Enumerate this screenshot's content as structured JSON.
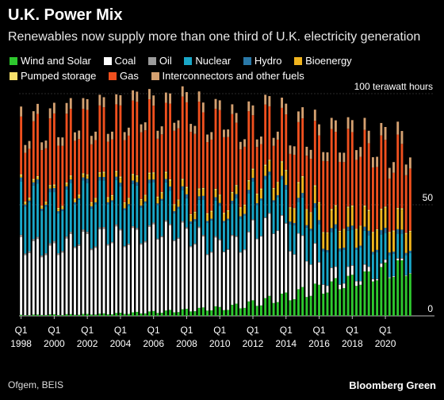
{
  "header": {
    "title": "U.K. Power Mix",
    "subtitle": "Renewables now supply more than one third of U.K. electricity generation"
  },
  "legend": [
    {
      "name": "Wind and Solar",
      "color": "#2ec82e"
    },
    {
      "name": "Coal",
      "color": "#ffffff"
    },
    {
      "name": "Oil",
      "color": "#9b9b9b"
    },
    {
      "name": "Nuclear",
      "color": "#1aa7c8"
    },
    {
      "name": "Hydro",
      "color": "#2a79a8"
    },
    {
      "name": "Bioenergy",
      "color": "#f0b41e"
    },
    {
      "name": "Pumped storage",
      "color": "#f6e06a"
    },
    {
      "name": "Gas",
      "color": "#f0501e"
    },
    {
      "name": "Interconnectors and other fuels",
      "color": "#d4a070"
    }
  ],
  "footer": {
    "source": "Ofgem, BEIS",
    "brand": "Bloomberg Green"
  },
  "chart_data": {
    "type": "bar",
    "stacked": true,
    "y_unit_label": "100 terawatt hours",
    "ylim": [
      0,
      100
    ],
    "y_ticks": [
      0,
      50,
      100
    ],
    "y_tick_labels": [
      "0",
      "50",
      "100 terawatt hours"
    ],
    "x_tick_labels": [
      {
        "q": "Q1",
        "year": "1998"
      },
      {
        "q": "Q1",
        "year": "2000"
      },
      {
        "q": "Q1",
        "year": "2002"
      },
      {
        "q": "Q1",
        "year": "2004"
      },
      {
        "q": "Q1",
        "year": "2006"
      },
      {
        "q": "Q1",
        "year": "2008"
      },
      {
        "q": "Q1",
        "year": "2010"
      },
      {
        "q": "Q1",
        "year": "2012"
      },
      {
        "q": "Q1",
        "year": "2014"
      },
      {
        "q": "Q1",
        "year": "2016"
      },
      {
        "q": "Q1",
        "year": "2018"
      },
      {
        "q": "Q1",
        "year": "2020"
      }
    ],
    "categories": [
      "1998 Q1",
      "1998 Q2",
      "1998 Q3",
      "1998 Q4",
      "1999 Q1",
      "1999 Q2",
      "1999 Q3",
      "1999 Q4",
      "2000 Q1",
      "2000 Q2",
      "2000 Q3",
      "2000 Q4",
      "2001 Q1",
      "2001 Q2",
      "2001 Q3",
      "2001 Q4",
      "2002 Q1",
      "2002 Q2",
      "2002 Q3",
      "2002 Q4",
      "2003 Q1",
      "2003 Q2",
      "2003 Q3",
      "2003 Q4",
      "2004 Q1",
      "2004 Q2",
      "2004 Q3",
      "2004 Q4",
      "2005 Q1",
      "2005 Q2",
      "2005 Q3",
      "2005 Q4",
      "2006 Q1",
      "2006 Q2",
      "2006 Q3",
      "2006 Q4",
      "2007 Q1",
      "2007 Q2",
      "2007 Q3",
      "2007 Q4",
      "2008 Q1",
      "2008 Q2",
      "2008 Q3",
      "2008 Q4",
      "2009 Q1",
      "2009 Q2",
      "2009 Q3",
      "2009 Q4",
      "2010 Q1",
      "2010 Q2",
      "2010 Q3",
      "2010 Q4",
      "2011 Q1",
      "2011 Q2",
      "2011 Q3",
      "2011 Q4",
      "2012 Q1",
      "2012 Q2",
      "2012 Q3",
      "2012 Q4",
      "2013 Q1",
      "2013 Q2",
      "2013 Q3",
      "2013 Q4",
      "2014 Q1",
      "2014 Q2",
      "2014 Q3",
      "2014 Q4",
      "2015 Q1",
      "2015 Q2",
      "2015 Q3",
      "2015 Q4",
      "2016 Q1",
      "2016 Q2",
      "2016 Q3",
      "2016 Q4",
      "2017 Q1",
      "2017 Q2",
      "2017 Q3",
      "2017 Q4",
      "2018 Q1",
      "2018 Q2",
      "2018 Q3",
      "2018 Q4",
      "2019 Q1",
      "2019 Q2",
      "2019 Q3",
      "2019 Q4",
      "2020 Q1",
      "2020 Q2",
      "2020 Q3",
      "2020 Q4",
      "2021 Q1",
      "2021 Q2",
      "2021 Q3"
    ],
    "series": [
      {
        "name": "Wind and Solar",
        "values": [
          0.5,
          0.3,
          0.3,
          0.6,
          0.6,
          0.4,
          0.4,
          0.7,
          0.7,
          0.4,
          0.4,
          0.8,
          0.8,
          0.5,
          0.5,
          0.9,
          0.9,
          0.6,
          0.6,
          1.0,
          1.1,
          0.7,
          0.7,
          1.3,
          1.4,
          0.9,
          0.9,
          1.6,
          1.8,
          1.1,
          1.1,
          2.0,
          2.2,
          1.3,
          1.4,
          2.4,
          2.7,
          1.6,
          1.7,
          3.0,
          3.2,
          2.0,
          2.1,
          3.6,
          3.8,
          2.4,
          2.5,
          4.3,
          4.0,
          2.6,
          2.7,
          5.0,
          5.5,
          3.4,
          3.6,
          6.5,
          7.0,
          4.5,
          4.7,
          8.0,
          9.0,
          5.8,
          6.2,
          10.0,
          10.5,
          7.0,
          7.5,
          12.0,
          13.0,
          8.5,
          9.0,
          14.5,
          14.0,
          10.0,
          10.5,
          15.5,
          17.0,
          12.0,
          12.5,
          18.0,
          18.5,
          13.5,
          14.0,
          20.0,
          20.0,
          15.5,
          16.0,
          22.0,
          24.0,
          17.0,
          17.5,
          25.0,
          25.0,
          18.0,
          19.0
        ]
      },
      {
        "name": "Coal",
        "values": [
          35,
          27,
          28,
          33,
          34,
          26,
          27,
          31,
          32,
          27,
          28,
          34,
          36,
          30,
          31,
          37,
          36,
          29,
          30,
          38,
          38,
          31,
          32,
          39,
          37,
          30,
          31,
          38,
          37,
          31,
          32,
          38,
          39,
          33,
          34,
          40,
          38,
          32,
          33,
          39,
          36,
          29,
          30,
          36,
          32,
          25,
          26,
          31,
          30,
          26,
          27,
          31,
          30,
          25,
          26,
          31,
          36,
          30,
          31,
          36,
          37,
          31,
          32,
          35,
          31,
          22,
          20,
          25,
          23,
          16,
          14,
          18,
          10,
          4,
          3,
          6,
          5,
          2,
          2,
          4,
          4,
          2,
          1.5,
          3,
          2,
          1,
          0.5,
          1.5,
          1.2,
          0.3,
          0.3,
          0.8,
          0.8,
          0.2,
          0.2
        ]
      },
      {
        "name": "Oil",
        "values": [
          1,
          0.8,
          0.8,
          1,
          1,
          0.8,
          0.8,
          1,
          1,
          0.8,
          0.8,
          1,
          1,
          0.7,
          0.7,
          1,
          1,
          0.7,
          0.7,
          0.9,
          0.9,
          0.6,
          0.6,
          0.9,
          0.8,
          0.6,
          0.6,
          0.8,
          0.8,
          0.6,
          0.6,
          0.8,
          0.8,
          0.5,
          0.5,
          0.7,
          0.7,
          0.5,
          0.5,
          0.7,
          0.7,
          0.5,
          0.5,
          0.6,
          0.6,
          0.4,
          0.4,
          0.6,
          0.6,
          0.4,
          0.4,
          0.5,
          0.5,
          0.4,
          0.4,
          0.5,
          0.5,
          0.3,
          0.3,
          0.4,
          0.4,
          0.3,
          0.3,
          0.4,
          0.4,
          0.3,
          0.3,
          0.3,
          0.3,
          0.2,
          0.2,
          0.3,
          0.3,
          0.2,
          0.2,
          0.3,
          0.3,
          0.2,
          0.2,
          0.3,
          0.3,
          0.2,
          0.2,
          0.3,
          0.3,
          0.2,
          0.2,
          0.2,
          0.2,
          0.1,
          0.1,
          0.2,
          0.2,
          0.1,
          0.1
        ]
      },
      {
        "name": "Nuclear",
        "values": [
          24,
          21,
          22,
          24,
          24,
          20,
          21,
          23,
          22,
          18,
          18,
          21,
          22,
          19,
          20,
          22,
          22,
          18,
          19,
          21,
          21,
          18,
          18,
          20,
          19,
          16,
          17,
          19,
          19,
          16,
          17,
          19,
          18,
          15,
          16,
          17,
          15,
          12,
          13,
          14,
          13,
          10,
          10,
          12,
          16,
          14,
          14,
          16,
          15,
          13,
          13,
          14,
          17,
          15,
          15,
          17,
          17,
          15,
          16,
          17,
          17,
          14,
          15,
          16,
          15,
          12,
          13,
          14,
          17,
          15,
          15,
          16,
          17,
          15,
          15,
          16,
          17,
          15,
          15,
          16,
          16,
          14,
          15,
          15,
          14,
          11,
          12,
          13,
          12,
          10,
          10,
          11,
          11,
          9,
          9
        ]
      },
      {
        "name": "Hydro",
        "values": [
          1.8,
          1.0,
          0.8,
          1.5,
          1.8,
          1.0,
          0.8,
          1.6,
          1.8,
          0.9,
          0.8,
          1.5,
          1.6,
          0.9,
          0.7,
          1.4,
          1.8,
          1.0,
          0.8,
          1.6,
          1.5,
          0.8,
          0.7,
          1.4,
          1.7,
          0.9,
          0.8,
          1.5,
          1.6,
          0.9,
          0.8,
          1.5,
          1.4,
          0.8,
          0.7,
          1.5,
          1.8,
          1.0,
          0.9,
          1.6,
          1.8,
          1.0,
          0.9,
          1.6,
          1.6,
          0.9,
          0.8,
          1.5,
          1.2,
          0.7,
          0.6,
          1.3,
          1.8,
          1.0,
          0.9,
          1.7,
          1.6,
          0.9,
          0.8,
          1.6,
          1.5,
          0.9,
          0.8,
          1.6,
          2.0,
          1.1,
          1.0,
          1.8,
          2.0,
          1.1,
          1.0,
          1.9,
          1.8,
          1.0,
          0.9,
          1.7,
          1.9,
          1.1,
          1.0,
          1.8,
          1.8,
          1.0,
          0.9,
          1.8,
          2.0,
          1.1,
          1.0,
          1.9,
          2.2,
          1.1,
          1.0,
          2.0,
          1.8,
          1.0,
          1.0
        ]
      },
      {
        "name": "Bioenergy",
        "values": [
          0.8,
          0.8,
          0.8,
          0.9,
          0.9,
          0.9,
          0.9,
          1.0,
          1.0,
          1.0,
          1.0,
          1.1,
          1.2,
          1.2,
          1.2,
          1.3,
          1.4,
          1.4,
          1.5,
          1.6,
          1.8,
          1.8,
          1.9,
          2.0,
          2.2,
          2.2,
          2.3,
          2.4,
          2.5,
          2.5,
          2.5,
          2.6,
          2.6,
          2.6,
          2.6,
          2.7,
          2.7,
          2.7,
          2.8,
          2.8,
          2.8,
          2.8,
          2.9,
          3.0,
          3.0,
          3.0,
          3.1,
          3.2,
          3.2,
          3.2,
          3.3,
          3.4,
          3.5,
          3.6,
          3.7,
          3.8,
          3.6,
          3.8,
          4.0,
          4.5,
          4.8,
          5.0,
          5.5,
          6.0,
          6.2,
          6.0,
          6.2,
          6.5,
          7.0,
          6.8,
          7.0,
          7.5,
          7.5,
          7.0,
          7.5,
          8.0,
          8.0,
          7.5,
          8.0,
          8.5,
          8.5,
          8.0,
          8.5,
          9.0,
          8.8,
          8.5,
          8.8,
          9.0,
          9.0,
          8.8,
          9.0,
          9.0,
          9.0,
          8.5,
          8.5
        ]
      },
      {
        "name": "Pumped storage",
        "values": [
          0.6,
          0.5,
          0.5,
          0.6,
          0.6,
          0.5,
          0.5,
          0.6,
          0.6,
          0.5,
          0.5,
          0.6,
          0.6,
          0.5,
          0.5,
          0.6,
          0.6,
          0.5,
          0.5,
          0.6,
          0.6,
          0.5,
          0.5,
          0.6,
          0.6,
          0.5,
          0.5,
          0.6,
          0.6,
          0.5,
          0.5,
          0.6,
          0.6,
          0.5,
          0.5,
          0.6,
          0.6,
          0.5,
          0.5,
          0.6,
          0.6,
          0.5,
          0.5,
          0.6,
          0.6,
          0.5,
          0.5,
          0.6,
          0.6,
          0.5,
          0.5,
          0.6,
          0.6,
          0.5,
          0.5,
          0.6,
          0.6,
          0.5,
          0.5,
          0.6,
          0.6,
          0.5,
          0.5,
          0.6,
          0.6,
          0.5,
          0.5,
          0.6,
          0.6,
          0.5,
          0.5,
          0.6,
          0.6,
          0.5,
          0.5,
          0.6,
          0.6,
          0.5,
          0.5,
          0.6,
          0.6,
          0.5,
          0.5,
          0.6,
          0.6,
          0.5,
          0.5,
          0.6,
          0.6,
          0.5,
          0.5,
          0.6,
          0.6,
          0.5,
          0.5
        ]
      },
      {
        "name": "Gas",
        "values": [
          26,
          22,
          22,
          26,
          28,
          25,
          24,
          30,
          32,
          28,
          27,
          31,
          30,
          26,
          25,
          29,
          29,
          26,
          26,
          30,
          29,
          25,
          25,
          30,
          32,
          28,
          28,
          33,
          33,
          30,
          29,
          33,
          30,
          26,
          26,
          31,
          34,
          33,
          32,
          37,
          38,
          37,
          35,
          39,
          34,
          32,
          32,
          36,
          38,
          34,
          33,
          35,
          28,
          26,
          26,
          31,
          24,
          21,
          20,
          27,
          24,
          19,
          19,
          24,
          25,
          24,
          24,
          27,
          26,
          24,
          24,
          29,
          30,
          32,
          32,
          36,
          33,
          31,
          30,
          35,
          33,
          31,
          31,
          34,
          30,
          29,
          28,
          33,
          30,
          24,
          26,
          33,
          29,
          26,
          28
        ]
      },
      {
        "name": "Interconnectors and other fuels",
        "values": [
          4.5,
          3.5,
          3.5,
          4.5,
          4.5,
          3.5,
          3.5,
          4.5,
          4.8,
          3.8,
          3.8,
          4.8,
          4.8,
          3.8,
          3.8,
          4.8,
          4.8,
          3.8,
          3.8,
          4.8,
          4.5,
          3.5,
          3.5,
          4.5,
          4.6,
          3.6,
          3.6,
          4.6,
          4.6,
          3.6,
          3.6,
          4.6,
          4.6,
          3.6,
          3.6,
          4.6,
          4.6,
          3.6,
          3.6,
          4.6,
          4.6,
          3.6,
          3.6,
          4.6,
          4.4,
          3.4,
          3.4,
          4.4,
          4.4,
          3.4,
          3.4,
          4.4,
          4.4,
          3.4,
          3.4,
          4.4,
          4.4,
          3.4,
          3.4,
          4.4,
          4.6,
          3.6,
          3.6,
          4.6,
          4.8,
          3.8,
          3.8,
          4.8,
          5.0,
          4.0,
          4.0,
          5.0,
          5.0,
          4.0,
          4.0,
          5.0,
          5.2,
          4.2,
          4.2,
          5.2,
          5.4,
          4.4,
          4.4,
          5.4,
          5.6,
          4.6,
          4.6,
          5.6,
          5.8,
          4.8,
          4.8,
          5.8,
          5.8,
          4.8,
          5.0
        ]
      }
    ]
  }
}
